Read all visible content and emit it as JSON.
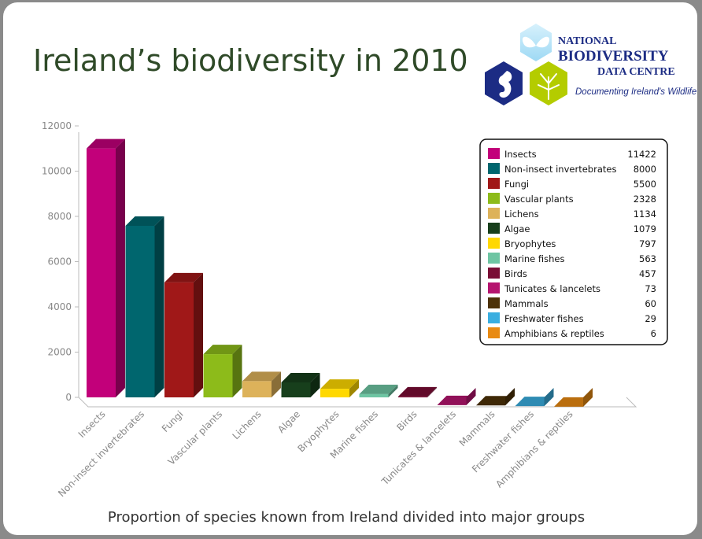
{
  "logo": {
    "line1": "NATIONAL",
    "line2": "BIODIVERSITY",
    "line3": "DATA CENTRE",
    "tagline": "Documenting Ireland's Wildlife"
  },
  "chart_data": {
    "type": "bar",
    "title": "Ireland’s biodiversity in 2010",
    "caption": "Proportion of species known from Ireland divided into major groups",
    "xlabel": "",
    "ylabel": "",
    "ylim": [
      0,
      12000
    ],
    "yticks": [
      0,
      2000,
      4000,
      6000,
      8000,
      10000,
      12000
    ],
    "grid": false,
    "legend_position": "top-right",
    "categories": [
      "Insects",
      "Non-insect invertebrates",
      "Fungi",
      "Vascular plants",
      "Lichens",
      "Algae",
      "Bryophytes",
      "Marine fishes",
      "Birds",
      "Tunicates & lancelets",
      "Mammals",
      "Freshwater fishes",
      "Amphibians & reptiles"
    ],
    "values": [
      11422,
      8000,
      5500,
      2328,
      1134,
      1079,
      797,
      563,
      457,
      73,
      60,
      29,
      6
    ],
    "colors": [
      "#c2007a",
      "#00666e",
      "#a01818",
      "#8dbb1a",
      "#ddb25a",
      "#173f1c",
      "#ffd800",
      "#6ec5a3",
      "#7a0d35",
      "#b5156f",
      "#4d3208",
      "#3aaee0",
      "#e88a12"
    ]
  }
}
